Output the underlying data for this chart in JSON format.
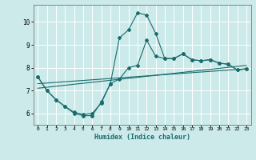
{
  "xlabel": "Humidex (Indice chaleur)",
  "background_color": "#cceaea",
  "grid_color": "#ffffff",
  "line_color": "#1a6b6b",
  "xlim": [
    -0.5,
    23.5
  ],
  "ylim": [
    5.5,
    10.75
  ],
  "xticks": [
    0,
    1,
    2,
    3,
    4,
    5,
    6,
    7,
    8,
    9,
    10,
    11,
    12,
    13,
    14,
    15,
    16,
    17,
    18,
    19,
    20,
    21,
    22,
    23
  ],
  "yticks": [
    6,
    7,
    8,
    9,
    10
  ],
  "line1_x": [
    0,
    1,
    2,
    3,
    4,
    5,
    6,
    7,
    8,
    9,
    10,
    11,
    12,
    13,
    14,
    15,
    16,
    17,
    18,
    19,
    20,
    21,
    22,
    23
  ],
  "line1_y": [
    7.6,
    7.0,
    6.6,
    6.3,
    6.0,
    5.9,
    5.9,
    6.5,
    7.3,
    7.5,
    8.0,
    8.1,
    9.2,
    8.5,
    8.4,
    8.4,
    8.6,
    8.35,
    8.3,
    8.35,
    8.2,
    8.15,
    7.9,
    7.95
  ],
  "line2_x": [
    0,
    1,
    2,
    3,
    4,
    5,
    6,
    7,
    8,
    9,
    10,
    11,
    12,
    13,
    14,
    15,
    16,
    17,
    18,
    19,
    20,
    21,
    22,
    23
  ],
  "line2_y": [
    7.6,
    7.0,
    6.6,
    6.3,
    6.05,
    5.95,
    6.0,
    6.45,
    7.3,
    9.3,
    9.65,
    10.4,
    10.3,
    9.5,
    8.4,
    8.4,
    8.6,
    8.35,
    8.3,
    8.35,
    8.2,
    8.15,
    7.9,
    7.95
  ],
  "line3_x": [
    0,
    23
  ],
  "line3_y": [
    7.3,
    7.95
  ],
  "line4_x": [
    0,
    23
  ],
  "line4_y": [
    7.1,
    8.1
  ]
}
